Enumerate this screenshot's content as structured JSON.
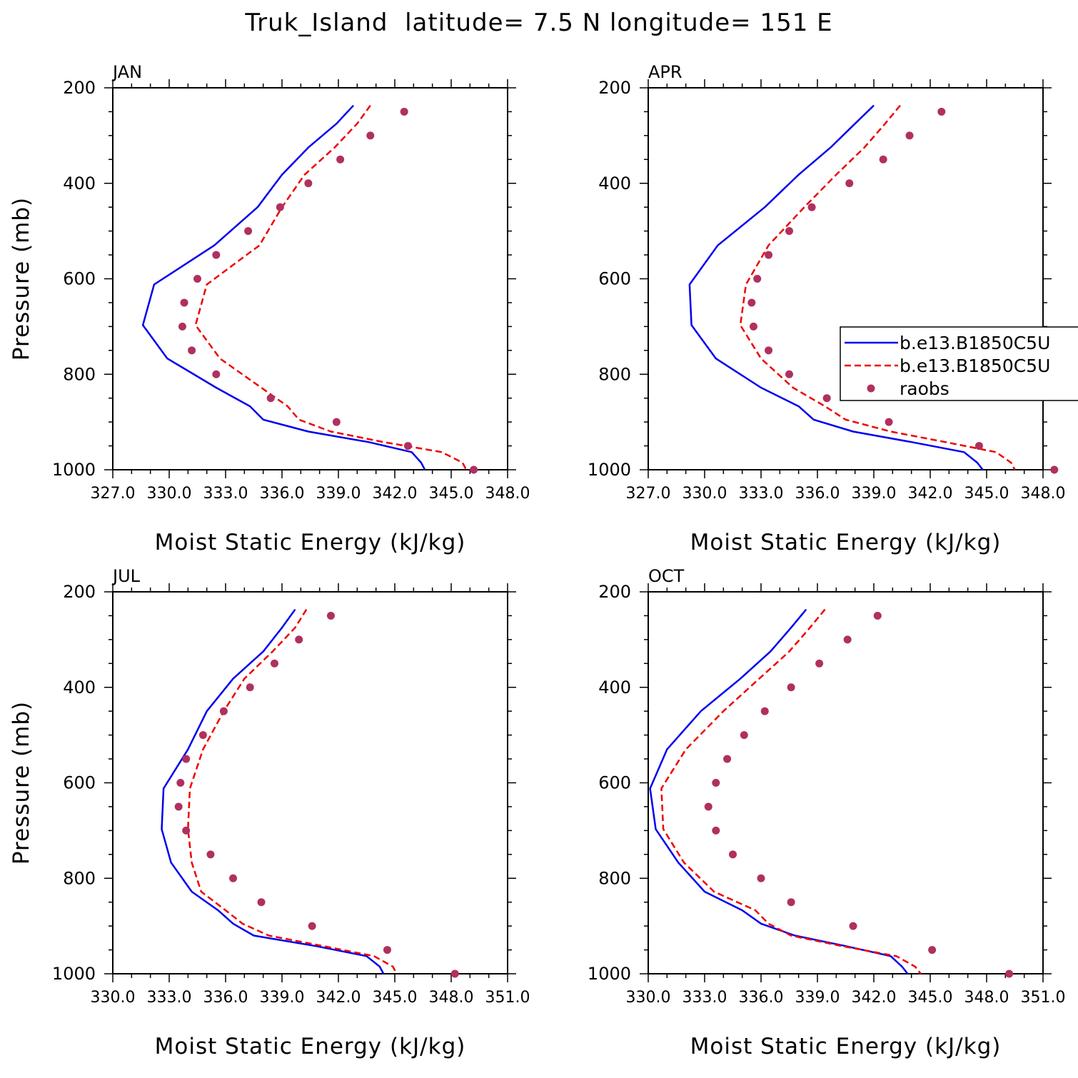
{
  "title": "Truk_Island  latitude= 7.5 N longitude= 151 E",
  "colors": {
    "case1": "#0000ee",
    "case2": "#ee0000",
    "raobs": "#b03060",
    "axis": "#000000"
  },
  "legend": {
    "entries": [
      {
        "label": "b.e13.B1850C5U",
        "style": "solid",
        "color": "#0000ee"
      },
      {
        "label": "b.e13.B1850C5U",
        "style": "dashed",
        "color": "#ee0000"
      },
      {
        "label": "raobs",
        "style": "dots",
        "color": "#b03060"
      }
    ],
    "placement": "right-middle of APR panel"
  },
  "chart_data": [
    {
      "type": "line",
      "panel": "JAN",
      "xlabel": "Moist Static Energy (kJ/kg)",
      "ylabel": "Pressure (mb)",
      "xlim": [
        327.0,
        348.0
      ],
      "ylim": [
        200,
        1000
      ],
      "xticks": [
        "327.0",
        "330.0",
        "333.0",
        "336.0",
        "339.0",
        "342.0",
        "345.0",
        "348.0"
      ],
      "yticks": [
        "200",
        "400",
        "600",
        "800",
        "1000"
      ],
      "series": [
        {
          "name": "b.e13.B1850C5U",
          "style": "solid",
          "color": "#0000ee",
          "pressure": [
            237,
            275,
            325,
            382,
            450,
            530,
            612,
            697,
            767,
            828,
            867,
            895,
            920,
            942,
            963,
            985,
            1000
          ],
          "values": [
            339.8,
            338.9,
            337.4,
            336.0,
            334.7,
            332.4,
            329.2,
            328.6,
            329.9,
            332.5,
            334.3,
            335.0,
            337.4,
            340.6,
            342.9,
            343.4,
            343.6
          ]
        },
        {
          "name": "b.e13.B1850C5U",
          "style": "dashed",
          "color": "#ee0000",
          "pressure": [
            237,
            275,
            325,
            382,
            450,
            530,
            612,
            697,
            767,
            828,
            867,
            895,
            920,
            942,
            963,
            985,
            1000
          ],
          "values": [
            340.7,
            340.0,
            338.8,
            337.2,
            336.0,
            334.8,
            332.0,
            331.4,
            332.7,
            334.9,
            336.3,
            336.9,
            338.6,
            341.4,
            344.5,
            345.6,
            345.8
          ]
        }
      ],
      "raobs": {
        "pressure": [
          250,
          300,
          350,
          400,
          450,
          500,
          550,
          600,
          650,
          700,
          750,
          800,
          850,
          900,
          950,
          1000
        ],
        "values": [
          342.5,
          340.7,
          339.1,
          337.4,
          335.9,
          334.2,
          332.5,
          331.5,
          330.8,
          330.7,
          331.2,
          332.5,
          335.4,
          338.9,
          342.7,
          346.2
        ]
      }
    },
    {
      "type": "line",
      "panel": "APR",
      "xlabel": "Moist Static Energy (kJ/kg)",
      "ylabel": "",
      "xlim": [
        327.0,
        348.0
      ],
      "ylim": [
        200,
        1000
      ],
      "xticks": [
        "327.0",
        "330.0",
        "333.0",
        "336.0",
        "339.0",
        "342.0",
        "345.0",
        "348.0"
      ],
      "yticks": [
        "200",
        "400",
        "600",
        "800",
        "1000"
      ],
      "series": [
        {
          "name": "b.e13.B1850C5U",
          "style": "solid",
          "color": "#0000ee",
          "pressure": [
            237,
            275,
            325,
            382,
            450,
            530,
            612,
            697,
            767,
            828,
            867,
            895,
            920,
            942,
            963,
            985,
            1000
          ],
          "values": [
            339.0,
            338.0,
            336.7,
            335.0,
            333.2,
            330.7,
            329.2,
            329.3,
            330.6,
            333.0,
            335.0,
            335.8,
            337.9,
            341.0,
            343.8,
            344.5,
            344.8
          ]
        },
        {
          "name": "b.e13.B1850C5U",
          "style": "dashed",
          "color": "#ee0000",
          "pressure": [
            237,
            275,
            325,
            382,
            450,
            530,
            612,
            697,
            767,
            828,
            867,
            895,
            920,
            942,
            963,
            985,
            1000
          ],
          "values": [
            340.4,
            339.6,
            338.5,
            337.0,
            335.3,
            333.4,
            332.2,
            331.9,
            333.0,
            334.7,
            336.4,
            337.5,
            339.9,
            342.8,
            345.5,
            346.3,
            346.5
          ]
        }
      ],
      "raobs": {
        "pressure": [
          250,
          300,
          350,
          400,
          450,
          500,
          550,
          600,
          650,
          700,
          750,
          800,
          850,
          900,
          950,
          1000
        ],
        "values": [
          342.6,
          340.9,
          339.5,
          337.7,
          335.7,
          334.5,
          333.4,
          332.8,
          332.5,
          332.6,
          333.4,
          334.5,
          336.5,
          339.8,
          344.6,
          348.6
        ]
      }
    },
    {
      "type": "line",
      "panel": "JUL",
      "xlabel": "Moist Static Energy (kJ/kg)",
      "ylabel": "Pressure (mb)",
      "xlim": [
        330.0,
        351.0
      ],
      "ylim": [
        200,
        1000
      ],
      "xticks": [
        "330.0",
        "333.0",
        "336.0",
        "339.0",
        "342.0",
        "345.0",
        "348.0",
        "351.0"
      ],
      "yticks": [
        "200",
        "400",
        "600",
        "800",
        "1000"
      ],
      "series": [
        {
          "name": "b.e13.B1850C5U",
          "style": "solid",
          "color": "#0000ee",
          "pressure": [
            237,
            275,
            325,
            382,
            450,
            530,
            612,
            697,
            767,
            828,
            867,
            895,
            920,
            942,
            963,
            985,
            1000
          ],
          "values": [
            339.7,
            339.0,
            338.0,
            336.4,
            335.0,
            334.0,
            332.7,
            332.6,
            333.1,
            334.2,
            335.6,
            336.4,
            337.5,
            340.8,
            343.5,
            344.2,
            344.4
          ]
        },
        {
          "name": "b.e13.B1850C5U",
          "style": "dashed",
          "color": "#ee0000",
          "pressure": [
            237,
            275,
            325,
            382,
            450,
            530,
            612,
            697,
            767,
            828,
            867,
            895,
            920,
            942,
            963,
            985,
            1000
          ],
          "values": [
            340.3,
            339.7,
            338.5,
            337.0,
            335.9,
            334.8,
            334.1,
            334.0,
            334.2,
            334.7,
            336.0,
            336.9,
            338.3,
            341.2,
            343.9,
            344.9,
            345.1
          ]
        }
      ],
      "raobs": {
        "pressure": [
          250,
          300,
          350,
          400,
          450,
          500,
          550,
          600,
          650,
          700,
          750,
          800,
          850,
          900,
          950,
          1000
        ],
        "values": [
          341.6,
          339.9,
          338.6,
          337.3,
          335.9,
          334.8,
          333.9,
          333.6,
          333.5,
          333.9,
          335.2,
          336.4,
          337.9,
          340.6,
          344.6,
          348.2
        ]
      }
    },
    {
      "type": "line",
      "panel": "OCT",
      "xlabel": "Moist Static Energy (kJ/kg)",
      "ylabel": "",
      "xlim": [
        330.0,
        351.0
      ],
      "ylim": [
        200,
        1000
      ],
      "xticks": [
        "330.0",
        "333.0",
        "336.0",
        "339.0",
        "342.0",
        "345.0",
        "348.0",
        "351.0"
      ],
      "yticks": [
        "200",
        "400",
        "600",
        "800",
        "1000"
      ],
      "series": [
        {
          "name": "b.e13.B1850C5U",
          "style": "solid",
          "color": "#0000ee",
          "pressure": [
            237,
            275,
            325,
            382,
            450,
            530,
            612,
            697,
            767,
            828,
            867,
            895,
            920,
            942,
            963,
            985,
            1000
          ],
          "values": [
            338.4,
            337.6,
            336.5,
            334.9,
            332.8,
            331.0,
            330.1,
            330.4,
            331.6,
            333.0,
            335.0,
            336.0,
            337.8,
            340.5,
            342.9,
            343.5,
            343.8
          ]
        },
        {
          "name": "b.e13.B1850C5U",
          "style": "dashed",
          "color": "#ee0000",
          "pressure": [
            237,
            275,
            325,
            382,
            450,
            530,
            612,
            697,
            767,
            828,
            867,
            895,
            920,
            942,
            963,
            985,
            1000
          ],
          "values": [
            339.4,
            338.6,
            337.5,
            335.9,
            334.0,
            332.0,
            330.7,
            330.8,
            331.9,
            333.5,
            335.7,
            336.4,
            337.6,
            340.3,
            343.2,
            344.2,
            344.5
          ]
        }
      ],
      "raobs": {
        "pressure": [
          250,
          300,
          350,
          400,
          450,
          500,
          550,
          600,
          650,
          700,
          750,
          800,
          850,
          900,
          950,
          1000
        ],
        "values": [
          342.2,
          340.6,
          339.1,
          337.6,
          336.2,
          335.1,
          334.2,
          333.6,
          333.2,
          333.6,
          334.5,
          336.0,
          337.6,
          340.9,
          345.1,
          349.2
        ]
      }
    }
  ]
}
